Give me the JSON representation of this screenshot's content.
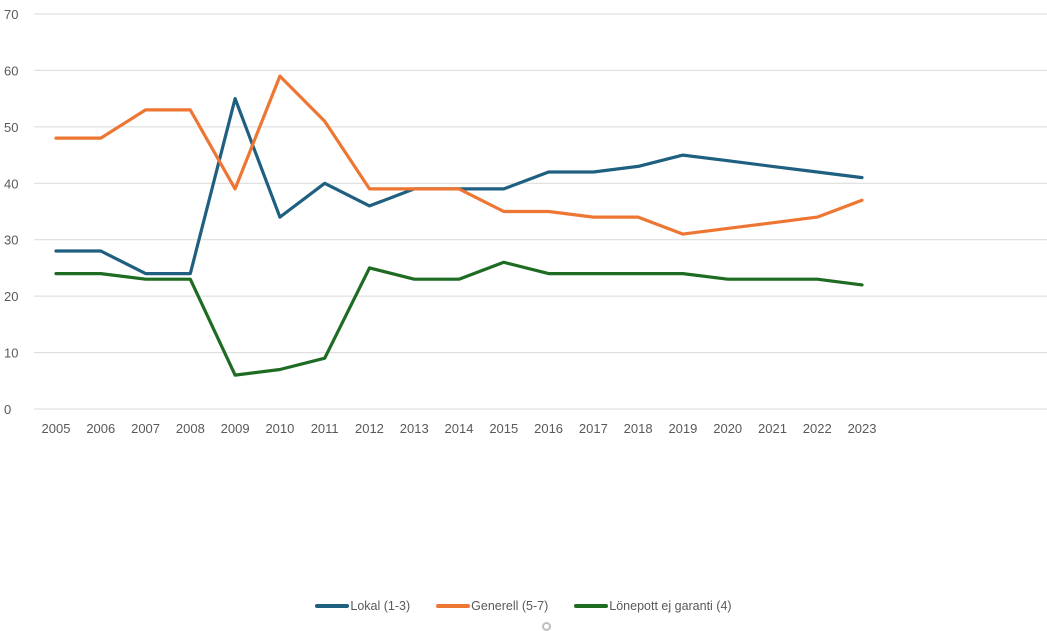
{
  "chart_data": {
    "type": "line",
    "title": "",
    "xlabel": "",
    "ylabel": "",
    "ylim": [
      0,
      70
    ],
    "yticks": [
      0,
      10,
      20,
      30,
      40,
      50,
      60,
      70
    ],
    "grid": true,
    "legend_position": "bottom",
    "categories": [
      "2005",
      "2006",
      "2007",
      "2008",
      "2009",
      "2010",
      "2011",
      "2012",
      "2013",
      "2014",
      "2015",
      "2016",
      "2017",
      "2018",
      "2019",
      "2020",
      "2021",
      "2022",
      "2023"
    ],
    "series": [
      {
        "name": "Lokal (1-3)",
        "color": "#1f5f80",
        "values": [
          28,
          28,
          24,
          24,
          55,
          34,
          40,
          36,
          39,
          39,
          39,
          42,
          42,
          43,
          45,
          44,
          43,
          42,
          41
        ]
      },
      {
        "name": "Generell (5-7)",
        "color": "#ee7633",
        "values": [
          48,
          48,
          53,
          53,
          39,
          59,
          51,
          39,
          39,
          39,
          35,
          35,
          34,
          34,
          31,
          32,
          33,
          34,
          37
        ]
      },
      {
        "name": "Lönepott ej garanti (4)",
        "color": "#1e6b22",
        "values": [
          24,
          24,
          23,
          23,
          6,
          7,
          9,
          25,
          23,
          23,
          26,
          24,
          24,
          24,
          24,
          23,
          23,
          23,
          22
        ]
      }
    ]
  }
}
